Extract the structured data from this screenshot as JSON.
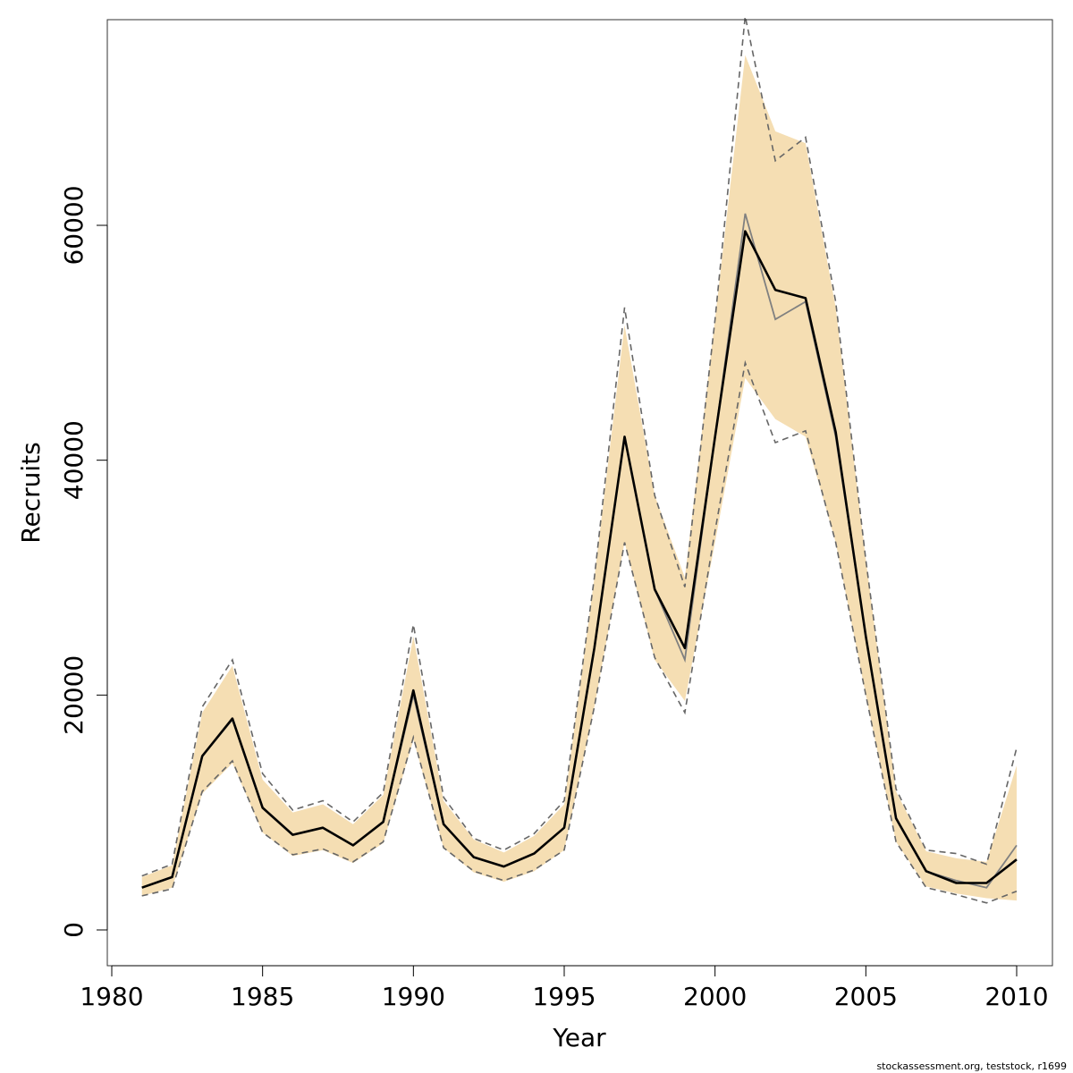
{
  "chart_data": {
    "type": "line",
    "xlabel": "Year",
    "ylabel": "Recruits",
    "xlim": [
      1980,
      2010
    ],
    "ylim": [
      0,
      60000
    ],
    "x_ticks": [
      "1980",
      "1985",
      "1990",
      "1995",
      "2000",
      "2005",
      "2010"
    ],
    "y_ticks": [
      "0",
      "20000",
      "40000",
      "60000"
    ],
    "years": [
      1981,
      1982,
      1983,
      1984,
      1985,
      1986,
      1987,
      1988,
      1989,
      1990,
      1991,
      1992,
      1993,
      1994,
      1995,
      1996,
      1997,
      1998,
      1999,
      2000,
      2001,
      2002,
      2003,
      2004,
      2005,
      2006,
      2007,
      2008,
      2009,
      2010
    ],
    "series": [
      {
        "role": "estimate",
        "values": [
          3600,
          4500,
          14800,
          18000,
          10400,
          8100,
          8700,
          7200,
          9200,
          20400,
          9000,
          6200,
          5400,
          6500,
          8700,
          24000,
          42000,
          29000,
          24000,
          42000,
          59500,
          54500,
          53800,
          42400,
          25000,
          9500,
          5000,
          4000,
          4000,
          6000
        ]
      },
      {
        "role": "alternative-estimate",
        "values": [
          3600,
          4500,
          14800,
          17900,
          10400,
          8100,
          8700,
          7200,
          9200,
          20000,
          9000,
          6200,
          5400,
          6500,
          8700,
          24000,
          42000,
          29000,
          23000,
          42000,
          61000,
          52000,
          53500,
          42000,
          25000,
          9500,
          5000,
          4200,
          3600,
          7200
        ]
      },
      {
        "role": "confidence-band",
        "lower": [
          2900,
          3600,
          11600,
          14200,
          8300,
          6300,
          6800,
          5700,
          7400,
          16200,
          7000,
          4900,
          4100,
          5000,
          6800,
          19000,
          33000,
          23000,
          19500,
          33000,
          47000,
          43500,
          42000,
          33000,
          20000,
          7500,
          3700,
          3100,
          2700,
          2500
        ],
        "upper": [
          4500,
          5500,
          18500,
          22500,
          12800,
          10000,
          10700,
          9000,
          11500,
          25000,
          11000,
          7700,
          6600,
          8000,
          10700,
          30000,
          51500,
          37000,
          30000,
          52000,
          74500,
          68000,
          67000,
          53000,
          31500,
          11800,
          6700,
          6100,
          5800,
          14000
        ]
      },
      {
        "role": "alternative-confidence-band",
        "lower": [
          2900,
          3500,
          11800,
          14400,
          8300,
          6400,
          6900,
          5800,
          7500,
          16400,
          7000,
          5000,
          4200,
          5100,
          6800,
          19000,
          33000,
          23200,
          18500,
          34000,
          48300,
          41500,
          42500,
          33000,
          20000,
          7500,
          3600,
          3000,
          2300,
          3300
        ],
        "upper": [
          4600,
          5600,
          19000,
          23000,
          13300,
          10200,
          11000,
          9200,
          11700,
          26000,
          11300,
          7800,
          6800,
          8200,
          11000,
          30000,
          53000,
          37000,
          29200,
          52000,
          77800,
          65500,
          67500,
          53500,
          31500,
          12000,
          6800,
          6500,
          5600,
          15500
        ]
      }
    ],
    "grid": false,
    "colors": {
      "band": "#f5deb3",
      "estimate": "#000000",
      "alternative": "#808080",
      "dashed": "#666666"
    }
  },
  "footer": "stockassessment.org, teststock, r1699"
}
